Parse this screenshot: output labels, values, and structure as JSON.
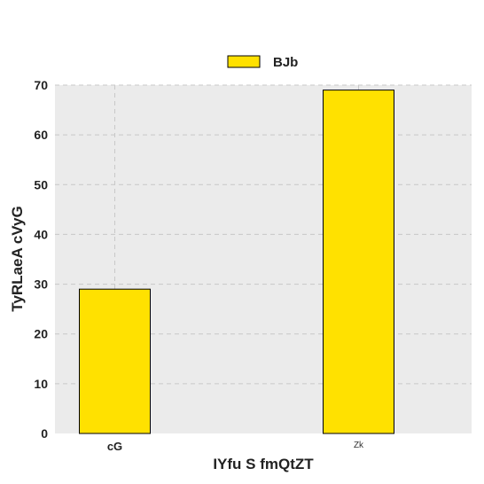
{
  "chart_data": {
    "type": "bar",
    "categories": [
      "cG",
      "Zk"
    ],
    "series": [
      {
        "name": "BJb",
        "values": [
          29,
          69
        ],
        "color": "#FFE100"
      }
    ],
    "xlabel": "IYfu S  fmQtZT",
    "ylabel": "TyRLaeA cVyG",
    "ylim": [
      0,
      70
    ],
    "yticks": [
      0,
      10,
      20,
      30,
      40,
      50,
      60,
      70
    ],
    "grid": true,
    "legend_position": "top-center",
    "background_color": "#EBEBEB",
    "grid_color": "#C8C8C8",
    "bar_edge_color": "#000000"
  }
}
